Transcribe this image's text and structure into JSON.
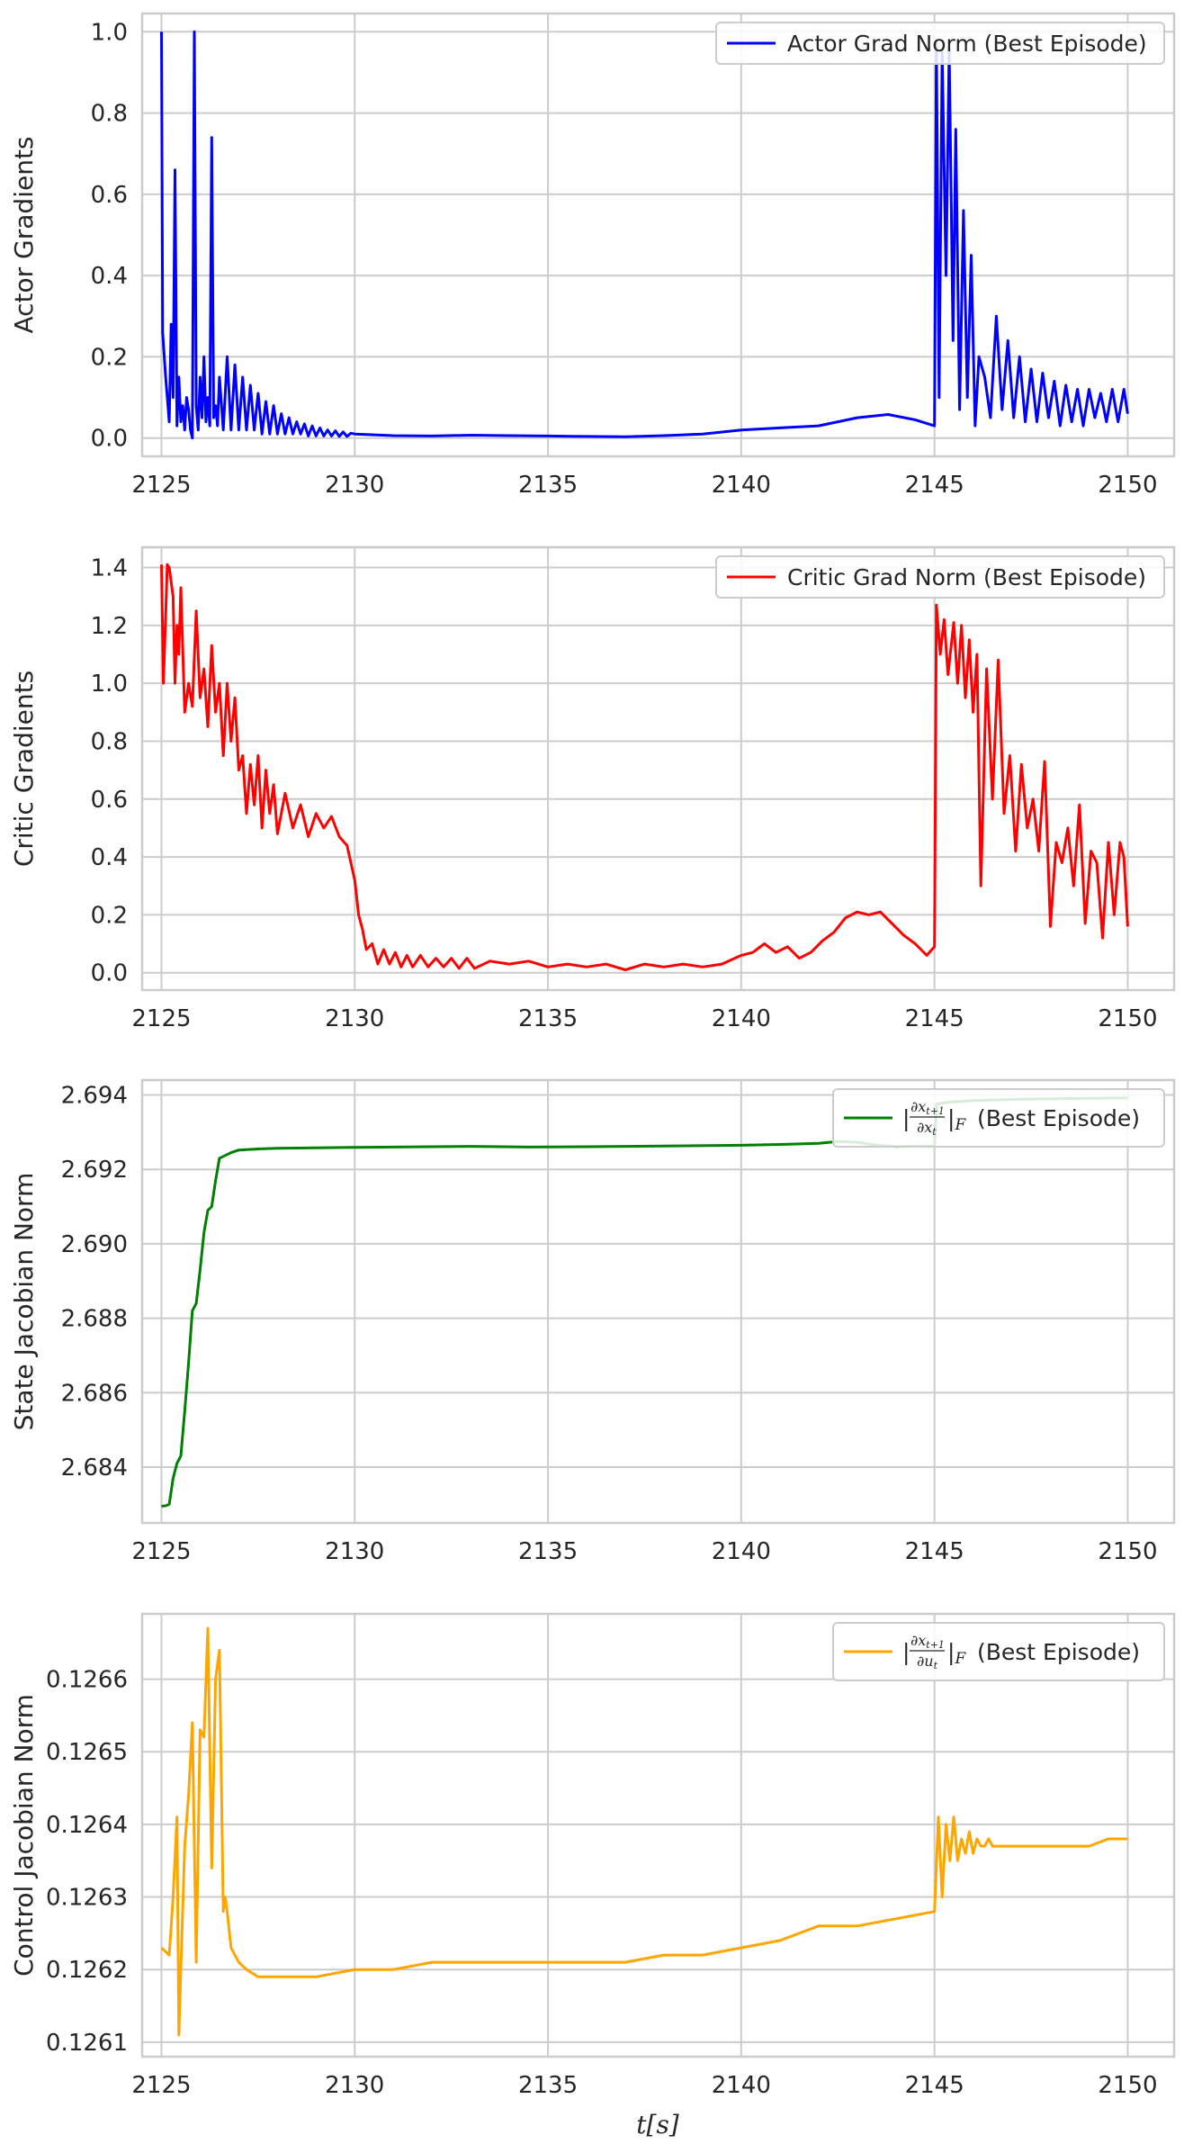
{
  "chart_data": [
    {
      "type": "line",
      "ylabel": "Actor Gradients",
      "xlabel": "",
      "xlim": [
        2124.5,
        2151.2
      ],
      "ylim": [
        -0.045,
        1.045
      ],
      "xticks": [
        2125,
        2130,
        2135,
        2140,
        2145,
        2150
      ],
      "yticks": [
        0.0,
        0.2,
        0.4,
        0.6,
        0.8,
        1.0
      ],
      "ytick_decimals": 1,
      "grid": true,
      "legend_position": "top-right",
      "series": [
        {
          "name": "Actor Grad Norm (Best Episode)",
          "color": "#0000ff",
          "x": [
            2125.0,
            2125.03,
            2125.1,
            2125.2,
            2125.25,
            2125.3,
            2125.35,
            2125.4,
            2125.45,
            2125.5,
            2125.55,
            2125.6,
            2125.65,
            2125.7,
            2125.75,
            2125.8,
            2125.85,
            2125.9,
            2125.95,
            2126.0,
            2126.05,
            2126.1,
            2126.15,
            2126.2,
            2126.25,
            2126.3,
            2126.35,
            2126.4,
            2126.45,
            2126.5,
            2126.6,
            2126.7,
            2126.8,
            2126.9,
            2127.0,
            2127.1,
            2127.2,
            2127.3,
            2127.4,
            2127.5,
            2127.6,
            2127.7,
            2127.8,
            2127.9,
            2128.0,
            2128.1,
            2128.2,
            2128.3,
            2128.4,
            2128.5,
            2128.6,
            2128.7,
            2128.8,
            2128.9,
            2129.0,
            2129.1,
            2129.2,
            2129.3,
            2129.4,
            2129.5,
            2129.6,
            2129.7,
            2129.8,
            2129.9,
            2130.0,
            2130.5,
            2131.0,
            2132.0,
            2133.0,
            2134.0,
            2135.0,
            2136.0,
            2137.0,
            2138.0,
            2139.0,
            2140.0,
            2141.0,
            2142.0,
            2143.0,
            2143.8,
            2144.5,
            2145.0,
            2145.05,
            2145.12,
            2145.2,
            2145.3,
            2145.38,
            2145.48,
            2145.55,
            2145.65,
            2145.75,
            2145.85,
            2145.95,
            2146.05,
            2146.15,
            2146.3,
            2146.45,
            2146.6,
            2146.75,
            2146.9,
            2147.05,
            2147.2,
            2147.35,
            2147.5,
            2147.65,
            2147.8,
            2147.95,
            2148.1,
            2148.25,
            2148.4,
            2148.55,
            2148.7,
            2148.85,
            2149.0,
            2149.15,
            2149.3,
            2149.45,
            2149.6,
            2149.75,
            2149.9,
            2150.0
          ],
          "y": [
            1.0,
            0.26,
            0.16,
            0.04,
            0.28,
            0.1,
            0.66,
            0.03,
            0.15,
            0.04,
            0.08,
            0.02,
            0.1,
            0.07,
            0.02,
            0.0,
            1.0,
            0.08,
            0.02,
            0.15,
            0.05,
            0.2,
            0.04,
            0.1,
            0.03,
            0.74,
            0.05,
            0.08,
            0.03,
            0.15,
            0.02,
            0.2,
            0.02,
            0.18,
            0.02,
            0.15,
            0.02,
            0.13,
            0.02,
            0.11,
            0.01,
            0.09,
            0.01,
            0.08,
            0.01,
            0.06,
            0.01,
            0.05,
            0.01,
            0.04,
            0.01,
            0.035,
            0.005,
            0.03,
            0.005,
            0.025,
            0.005,
            0.02,
            0.005,
            0.018,
            0.004,
            0.015,
            0.004,
            0.012,
            0.01,
            0.008,
            0.006,
            0.005,
            0.007,
            0.006,
            0.005,
            0.004,
            0.003,
            0.006,
            0.01,
            0.02,
            0.025,
            0.03,
            0.05,
            0.058,
            0.045,
            0.03,
            0.97,
            0.1,
            0.95,
            0.4,
            0.96,
            0.24,
            0.76,
            0.07,
            0.56,
            0.1,
            0.45,
            0.03,
            0.2,
            0.15,
            0.05,
            0.3,
            0.07,
            0.24,
            0.05,
            0.2,
            0.04,
            0.17,
            0.04,
            0.16,
            0.05,
            0.14,
            0.03,
            0.13,
            0.04,
            0.12,
            0.03,
            0.12,
            0.05,
            0.11,
            0.04,
            0.12,
            0.04,
            0.12,
            0.06
          ]
        }
      ]
    },
    {
      "type": "line",
      "ylabel": "Critic Gradients",
      "xlabel": "",
      "xlim": [
        2124.5,
        2151.2
      ],
      "ylim": [
        -0.06,
        1.47
      ],
      "xticks": [
        2125,
        2130,
        2135,
        2140,
        2145,
        2150
      ],
      "yticks": [
        0.0,
        0.2,
        0.4,
        0.6,
        0.8,
        1.0,
        1.2,
        1.4
      ],
      "ytick_decimals": 1,
      "grid": true,
      "legend_position": "top-right",
      "series": [
        {
          "name": "Critic Grad Norm (Best Episode)",
          "color": "#ff0000",
          "x": [
            2125.0,
            2125.05,
            2125.1,
            2125.15,
            2125.2,
            2125.3,
            2125.35,
            2125.4,
            2125.45,
            2125.5,
            2125.6,
            2125.7,
            2125.8,
            2125.9,
            2126.0,
            2126.1,
            2126.2,
            2126.3,
            2126.4,
            2126.5,
            2126.6,
            2126.7,
            2126.8,
            2126.9,
            2127.0,
            2127.1,
            2127.2,
            2127.3,
            2127.4,
            2127.5,
            2127.6,
            2127.7,
            2127.8,
            2127.9,
            2128.0,
            2128.2,
            2128.4,
            2128.6,
            2128.8,
            2129.0,
            2129.2,
            2129.4,
            2129.6,
            2129.8,
            2130.0,
            2130.1,
            2130.2,
            2130.3,
            2130.45,
            2130.6,
            2130.75,
            2130.9,
            2131.05,
            2131.2,
            2131.35,
            2131.5,
            2131.7,
            2131.9,
            2132.1,
            2132.3,
            2132.5,
            2132.7,
            2132.9,
            2133.1,
            2133.5,
            2134.0,
            2134.5,
            2135.0,
            2135.5,
            2136.0,
            2136.5,
            2137.0,
            2137.5,
            2138.0,
            2138.5,
            2139.0,
            2139.5,
            2140.0,
            2140.3,
            2140.6,
            2140.9,
            2141.2,
            2141.5,
            2141.8,
            2142.1,
            2142.4,
            2142.7,
            2143.0,
            2143.3,
            2143.6,
            2143.9,
            2144.2,
            2144.5,
            2144.8,
            2145.0,
            2145.05,
            2145.15,
            2145.25,
            2145.35,
            2145.5,
            2145.6,
            2145.7,
            2145.8,
            2145.9,
            2146.0,
            2146.1,
            2146.2,
            2146.35,
            2146.5,
            2146.65,
            2146.8,
            2146.95,
            2147.1,
            2147.25,
            2147.4,
            2147.55,
            2147.7,
            2147.85,
            2148.0,
            2148.15,
            2148.3,
            2148.45,
            2148.6,
            2148.75,
            2148.9,
            2149.05,
            2149.2,
            2149.35,
            2149.5,
            2149.65,
            2149.8,
            2149.9,
            2150.0
          ],
          "y": [
            1.41,
            1.0,
            1.2,
            1.41,
            1.4,
            1.3,
            1.0,
            1.2,
            1.1,
            1.33,
            0.9,
            1.0,
            0.92,
            1.25,
            0.95,
            1.05,
            0.85,
            1.13,
            0.9,
            1.0,
            0.75,
            1.0,
            0.8,
            0.95,
            0.7,
            0.75,
            0.55,
            0.72,
            0.58,
            0.75,
            0.5,
            0.7,
            0.55,
            0.65,
            0.48,
            0.62,
            0.5,
            0.58,
            0.47,
            0.55,
            0.5,
            0.54,
            0.47,
            0.44,
            0.32,
            0.2,
            0.15,
            0.08,
            0.1,
            0.03,
            0.08,
            0.03,
            0.07,
            0.02,
            0.06,
            0.02,
            0.06,
            0.02,
            0.05,
            0.02,
            0.05,
            0.015,
            0.05,
            0.015,
            0.04,
            0.03,
            0.04,
            0.02,
            0.03,
            0.02,
            0.03,
            0.01,
            0.03,
            0.02,
            0.03,
            0.02,
            0.03,
            0.06,
            0.07,
            0.1,
            0.07,
            0.09,
            0.05,
            0.07,
            0.11,
            0.14,
            0.19,
            0.21,
            0.2,
            0.21,
            0.17,
            0.13,
            0.1,
            0.06,
            0.09,
            1.27,
            1.1,
            1.22,
            1.03,
            1.21,
            1.0,
            1.2,
            0.95,
            1.15,
            0.9,
            1.1,
            0.3,
            1.05,
            0.6,
            1.08,
            0.55,
            0.75,
            0.42,
            0.72,
            0.5,
            0.6,
            0.42,
            0.73,
            0.16,
            0.45,
            0.38,
            0.5,
            0.3,
            0.58,
            0.17,
            0.42,
            0.38,
            0.12,
            0.45,
            0.2,
            0.45,
            0.4,
            0.16
          ]
        }
      ]
    },
    {
      "type": "line",
      "ylabel": "State Jacobian Norm",
      "xlabel": "",
      "xlim": [
        2124.5,
        2151.2
      ],
      "ylim": [
        2.6825,
        2.6944
      ],
      "xticks": [
        2125,
        2130,
        2135,
        2140,
        2145,
        2150
      ],
      "yticks": [
        2.684,
        2.686,
        2.688,
        2.69,
        2.692,
        2.694
      ],
      "ytick_decimals": 3,
      "grid": true,
      "legend_position": "top-right",
      "series": [
        {
          "name": "(Best Episode)",
          "color": "#008000",
          "x": [
            2125.0,
            2125.1,
            2125.2,
            2125.3,
            2125.4,
            2125.5,
            2125.6,
            2125.7,
            2125.8,
            2125.9,
            2126.0,
            2126.1,
            2126.2,
            2126.3,
            2126.4,
            2126.5,
            2126.6,
            2126.7,
            2126.8,
            2127.0,
            2127.5,
            2128.0,
            2129.0,
            2130.0,
            2132.0,
            2133.0,
            2134.5,
            2136.0,
            2138.0,
            2140.0,
            2141.0,
            2142.0,
            2142.5,
            2143.0,
            2143.5,
            2144.0,
            2145.0,
            2145.05,
            2145.3,
            2146.0,
            2147.0,
            2148.0,
            2150.0
          ],
          "y": [
            2.68295,
            2.68296,
            2.683,
            2.6837,
            2.6841,
            2.6843,
            2.6855,
            2.6868,
            2.6882,
            2.6884,
            2.6893,
            2.6903,
            2.6909,
            2.691,
            2.6917,
            2.6923,
            2.69235,
            2.6924,
            2.69245,
            2.69252,
            2.69255,
            2.69257,
            2.69258,
            2.69259,
            2.69261,
            2.69262,
            2.6926,
            2.69261,
            2.69263,
            2.69265,
            2.69267,
            2.6927,
            2.69275,
            2.69273,
            2.69265,
            2.69262,
            2.69263,
            2.69375,
            2.6938,
            2.69385,
            2.69388,
            2.6939,
            2.69392
          ]
        }
      ]
    },
    {
      "type": "line",
      "ylabel": "Control Jacobian Norm",
      "xlabel": "t[s]",
      "xlim": [
        2124.5,
        2151.2
      ],
      "ylim": [
        0.12608,
        0.12669
      ],
      "xticks": [
        2125,
        2130,
        2135,
        2140,
        2145,
        2150
      ],
      "yticks": [
        0.1261,
        0.1262,
        0.1263,
        0.1264,
        0.1265,
        0.1266
      ],
      "ytick_decimals": 4,
      "grid": true,
      "legend_position": "top-right",
      "series": [
        {
          "name": "(Best Episode)",
          "color": "#ffa500",
          "x": [
            2125.0,
            2125.2,
            2125.3,
            2125.4,
            2125.45,
            2125.5,
            2125.6,
            2125.7,
            2125.8,
            2125.9,
            2126.0,
            2126.1,
            2126.2,
            2126.3,
            2126.4,
            2126.5,
            2126.6,
            2126.65,
            2126.7,
            2126.8,
            2126.9,
            2127.0,
            2127.2,
            2127.5,
            2128.0,
            2128.5,
            2129.0,
            2130.0,
            2131.0,
            2132.0,
            2133.0,
            2134.0,
            2135.0,
            2136.0,
            2137.0,
            2138.0,
            2139.0,
            2140.0,
            2141.0,
            2142.0,
            2142.5,
            2143.0,
            2144.0,
            2145.0,
            2145.1,
            2145.2,
            2145.3,
            2145.4,
            2145.5,
            2145.6,
            2145.7,
            2145.8,
            2145.9,
            2146.0,
            2146.1,
            2146.2,
            2146.3,
            2146.4,
            2146.5,
            2146.7,
            2147.0,
            2147.5,
            2148.0,
            2148.5,
            2149.0,
            2149.5,
            2150.0
          ],
          "y": [
            0.12623,
            0.12622,
            0.1263,
            0.12641,
            0.12611,
            0.1262,
            0.12637,
            0.12644,
            0.12654,
            0.12621,
            0.12653,
            0.12652,
            0.12667,
            0.12634,
            0.1266,
            0.12664,
            0.12628,
            0.1263,
            0.12628,
            0.12623,
            0.12622,
            0.12621,
            0.1262,
            0.12619,
            0.12619,
            0.12619,
            0.12619,
            0.1262,
            0.1262,
            0.12621,
            0.12621,
            0.12621,
            0.12621,
            0.12621,
            0.12621,
            0.12622,
            0.12622,
            0.12623,
            0.12624,
            0.12626,
            0.12626,
            0.12626,
            0.12627,
            0.12628,
            0.12641,
            0.1263,
            0.1264,
            0.12635,
            0.12641,
            0.12635,
            0.12638,
            0.12636,
            0.12639,
            0.12636,
            0.12638,
            0.12637,
            0.12637,
            0.12638,
            0.12637,
            0.12637,
            0.12637,
            0.12637,
            0.12637,
            0.12637,
            0.12637,
            0.12638,
            0.12638
          ]
        }
      ]
    }
  ],
  "legend_math": [
    {
      "lead": "|",
      "num": "∂x",
      "num_sub": "t+1",
      "den": "∂x",
      "den_sub": "t",
      "tail": "|",
      "tail_sub": "F"
    },
    {
      "lead": "|",
      "num": "∂x",
      "num_sub": "t+1",
      "den": "∂u",
      "den_sub": "t",
      "tail": "|",
      "tail_sub": "F"
    }
  ]
}
